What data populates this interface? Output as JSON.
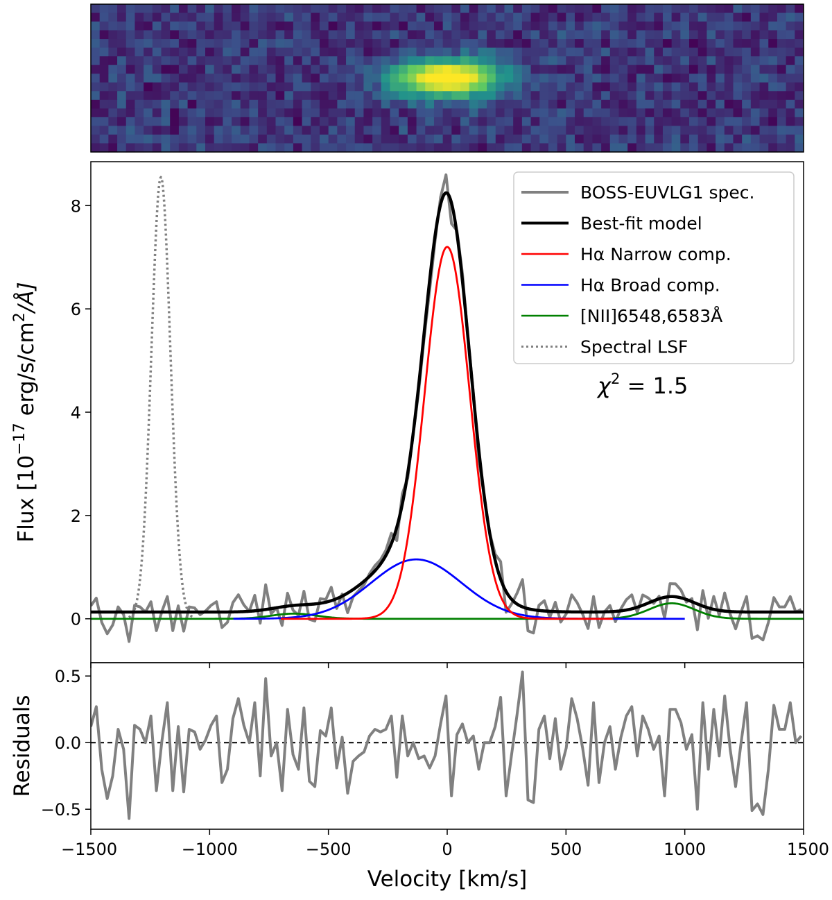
{
  "chart_data": [
    {
      "type": "heatmap",
      "description_hidden": true,
      "grid": {
        "cols": 81,
        "rows": 17
      },
      "source": {
        "x_center": 40,
        "y_center": 8,
        "sigma_x": 4.5,
        "sigma_y": 1.6,
        "peak": 1.0
      },
      "noise_level": 0.32,
      "colormap": [
        "#440154",
        "#3b528b",
        "#21918c",
        "#5ec962",
        "#fde725"
      ]
    },
    {
      "type": "line",
      "ylabel": "Flux [10^-17 erg/s/cm^2/Å]",
      "ylabel_parts": {
        "prefix": "Flux [10",
        "exp1": "−17",
        "mid": " erg/s/cm",
        "exp2": "2",
        "suffix": "/Å]"
      },
      "xlim": [
        -1500,
        1500
      ],
      "ylim": [
        -0.85,
        8.85
      ],
      "yticks": [
        0,
        2,
        4,
        6,
        8
      ],
      "annotation": {
        "text_prefix": "χ",
        "text_exp": "2",
        "text_suffix": " = 1.5"
      },
      "legend_position": "upper right",
      "legend": [
        {
          "label": "BOSS-EUVLG1 spec.",
          "color": "#808080",
          "style": "solid",
          "width": 4
        },
        {
          "label": "Best-fit model",
          "color": "#000000",
          "style": "solid",
          "width": 4
        },
        {
          "label": "Hα Narrow comp.",
          "color": "#ff0000",
          "style": "solid",
          "width": 2.5
        },
        {
          "label": "Hα Broad comp.",
          "color": "#0000ff",
          "style": "solid",
          "width": 2.5
        },
        {
          "label": "[NII]6548,6583Å",
          "color": "#008000",
          "style": "solid",
          "width": 2.5
        },
        {
          "label": "Spectral LSF",
          "color": "#808080",
          "style": "dotted",
          "width": 3
        }
      ],
      "components": {
        "continuum": 0.13,
        "narrow": {
          "amp": 7.2,
          "center": 0,
          "sigma": 95
        },
        "broad": {
          "amp": 1.15,
          "center": -130,
          "sigma": 190
        },
        "nii_6583": {
          "amp": 0.3,
          "center": 945,
          "sigma": 95
        },
        "nii_6548": {
          "amp": 0.1,
          "center": -645,
          "sigma": 95
        },
        "lsf": {
          "amp": 8.55,
          "center": -1205,
          "sigma": 40,
          "xrange": [
            -1340,
            -1070
          ]
        }
      },
      "spectrum_x": [
        -1500,
        -1477,
        -1454,
        -1431,
        -1408,
        -1385,
        -1362,
        -1339,
        -1316,
        -1293,
        -1270,
        -1247,
        -1224,
        -1201,
        -1178,
        -1155,
        -1132,
        -1109,
        -1086,
        -1063,
        -1040,
        -1017,
        -994,
        -971,
        -948,
        -925,
        -902,
        -879,
        -856,
        -833,
        -810,
        -787,
        -764,
        -741,
        -718,
        -695,
        -672,
        -649,
        -626,
        -603,
        -580,
        -557,
        -534,
        -511,
        -488,
        -465,
        -442,
        -419,
        -396,
        -373,
        -350,
        -327,
        -304,
        -281,
        -258,
        -235,
        -212,
        -189,
        -166,
        -143,
        -120,
        -97,
        -74,
        -51,
        -28,
        -5,
        18,
        41,
        64,
        87,
        110,
        133,
        156,
        179,
        202,
        225,
        248,
        271,
        294,
        317,
        340,
        363,
        386,
        409,
        432,
        455,
        478,
        501,
        524,
        547,
        570,
        593,
        616,
        639,
        662,
        685,
        708,
        731,
        754,
        777,
        800,
        823,
        846,
        869,
        892,
        915,
        938,
        961,
        984,
        1007,
        1030,
        1053,
        1076,
        1099,
        1122,
        1145,
        1168,
        1191,
        1214,
        1237,
        1260,
        1283,
        1306,
        1329,
        1352,
        1375,
        1398,
        1421,
        1444,
        1467,
        1490
      ],
      "residuals_panel": {
        "ylabel": "Residuals",
        "xlabel": "Velocity [km/s]",
        "ylim": [
          -0.65,
          0.6
        ],
        "yticks": [
          -0.5,
          0.0,
          0.5
        ],
        "ytick_labels": [
          "−0.5",
          "0.0",
          "0.5"
        ],
        "xticks": [
          -1500,
          -1000,
          -500,
          0,
          500,
          1000,
          1500
        ],
        "xtick_labels": [
          "−1500",
          "−1000",
          "−500",
          "0",
          "500",
          "1000",
          "1500"
        ],
        "zero_line": {
          "color": "#000000",
          "style": "dashed"
        },
        "values": [
          0.12,
          0.27,
          -0.2,
          -0.42,
          -0.25,
          0.1,
          -0.05,
          -0.57,
          0.13,
          0.1,
          0.0,
          0.2,
          -0.36,
          0.01,
          0.3,
          -0.36,
          0.12,
          -0.37,
          0.1,
          0.08,
          -0.05,
          0.02,
          0.13,
          0.2,
          -0.3,
          -0.2,
          0.18,
          0.33,
          0.13,
          0.0,
          0.3,
          -0.25,
          0.48,
          -0.1,
          0.0,
          -0.36,
          0.25,
          -0.09,
          -0.2,
          0.26,
          -0.29,
          -0.33,
          0.09,
          0.05,
          0.26,
          -0.19,
          0.04,
          -0.38,
          -0.14,
          -0.1,
          -0.07,
          0.05,
          0.1,
          0.08,
          0.1,
          0.2,
          -0.26,
          0.2,
          -0.1,
          0.0,
          -0.12,
          -0.1,
          -0.19,
          -0.1,
          0.14,
          0.35,
          -0.4,
          0.06,
          0.14,
          0.0,
          0.05,
          -0.2,
          0.0,
          0.0,
          0.12,
          0.34,
          -0.4,
          -0.09,
          0.21,
          0.53,
          -0.43,
          -0.45,
          0.1,
          0.2,
          -0.12,
          0.18,
          -0.2,
          -0.04,
          0.33,
          0.18,
          -0.04,
          -0.32,
          0.3,
          -0.3,
          0.0,
          0.12,
          -0.2,
          0.04,
          0.2,
          0.27,
          -0.1,
          0.2,
          0.1,
          -0.05,
          0.05,
          -0.4,
          0.25,
          0.25,
          0.15,
          -0.05,
          0.06,
          -0.5,
          0.3,
          -0.2,
          0.25,
          -0.1,
          0.35,
          -0.05,
          -0.33,
          0.0,
          0.3,
          -0.51,
          -0.46,
          -0.54,
          -0.2,
          0.28,
          0.1,
          0.1,
          0.3,
          0.0,
          0.05
        ]
      }
    }
  ]
}
